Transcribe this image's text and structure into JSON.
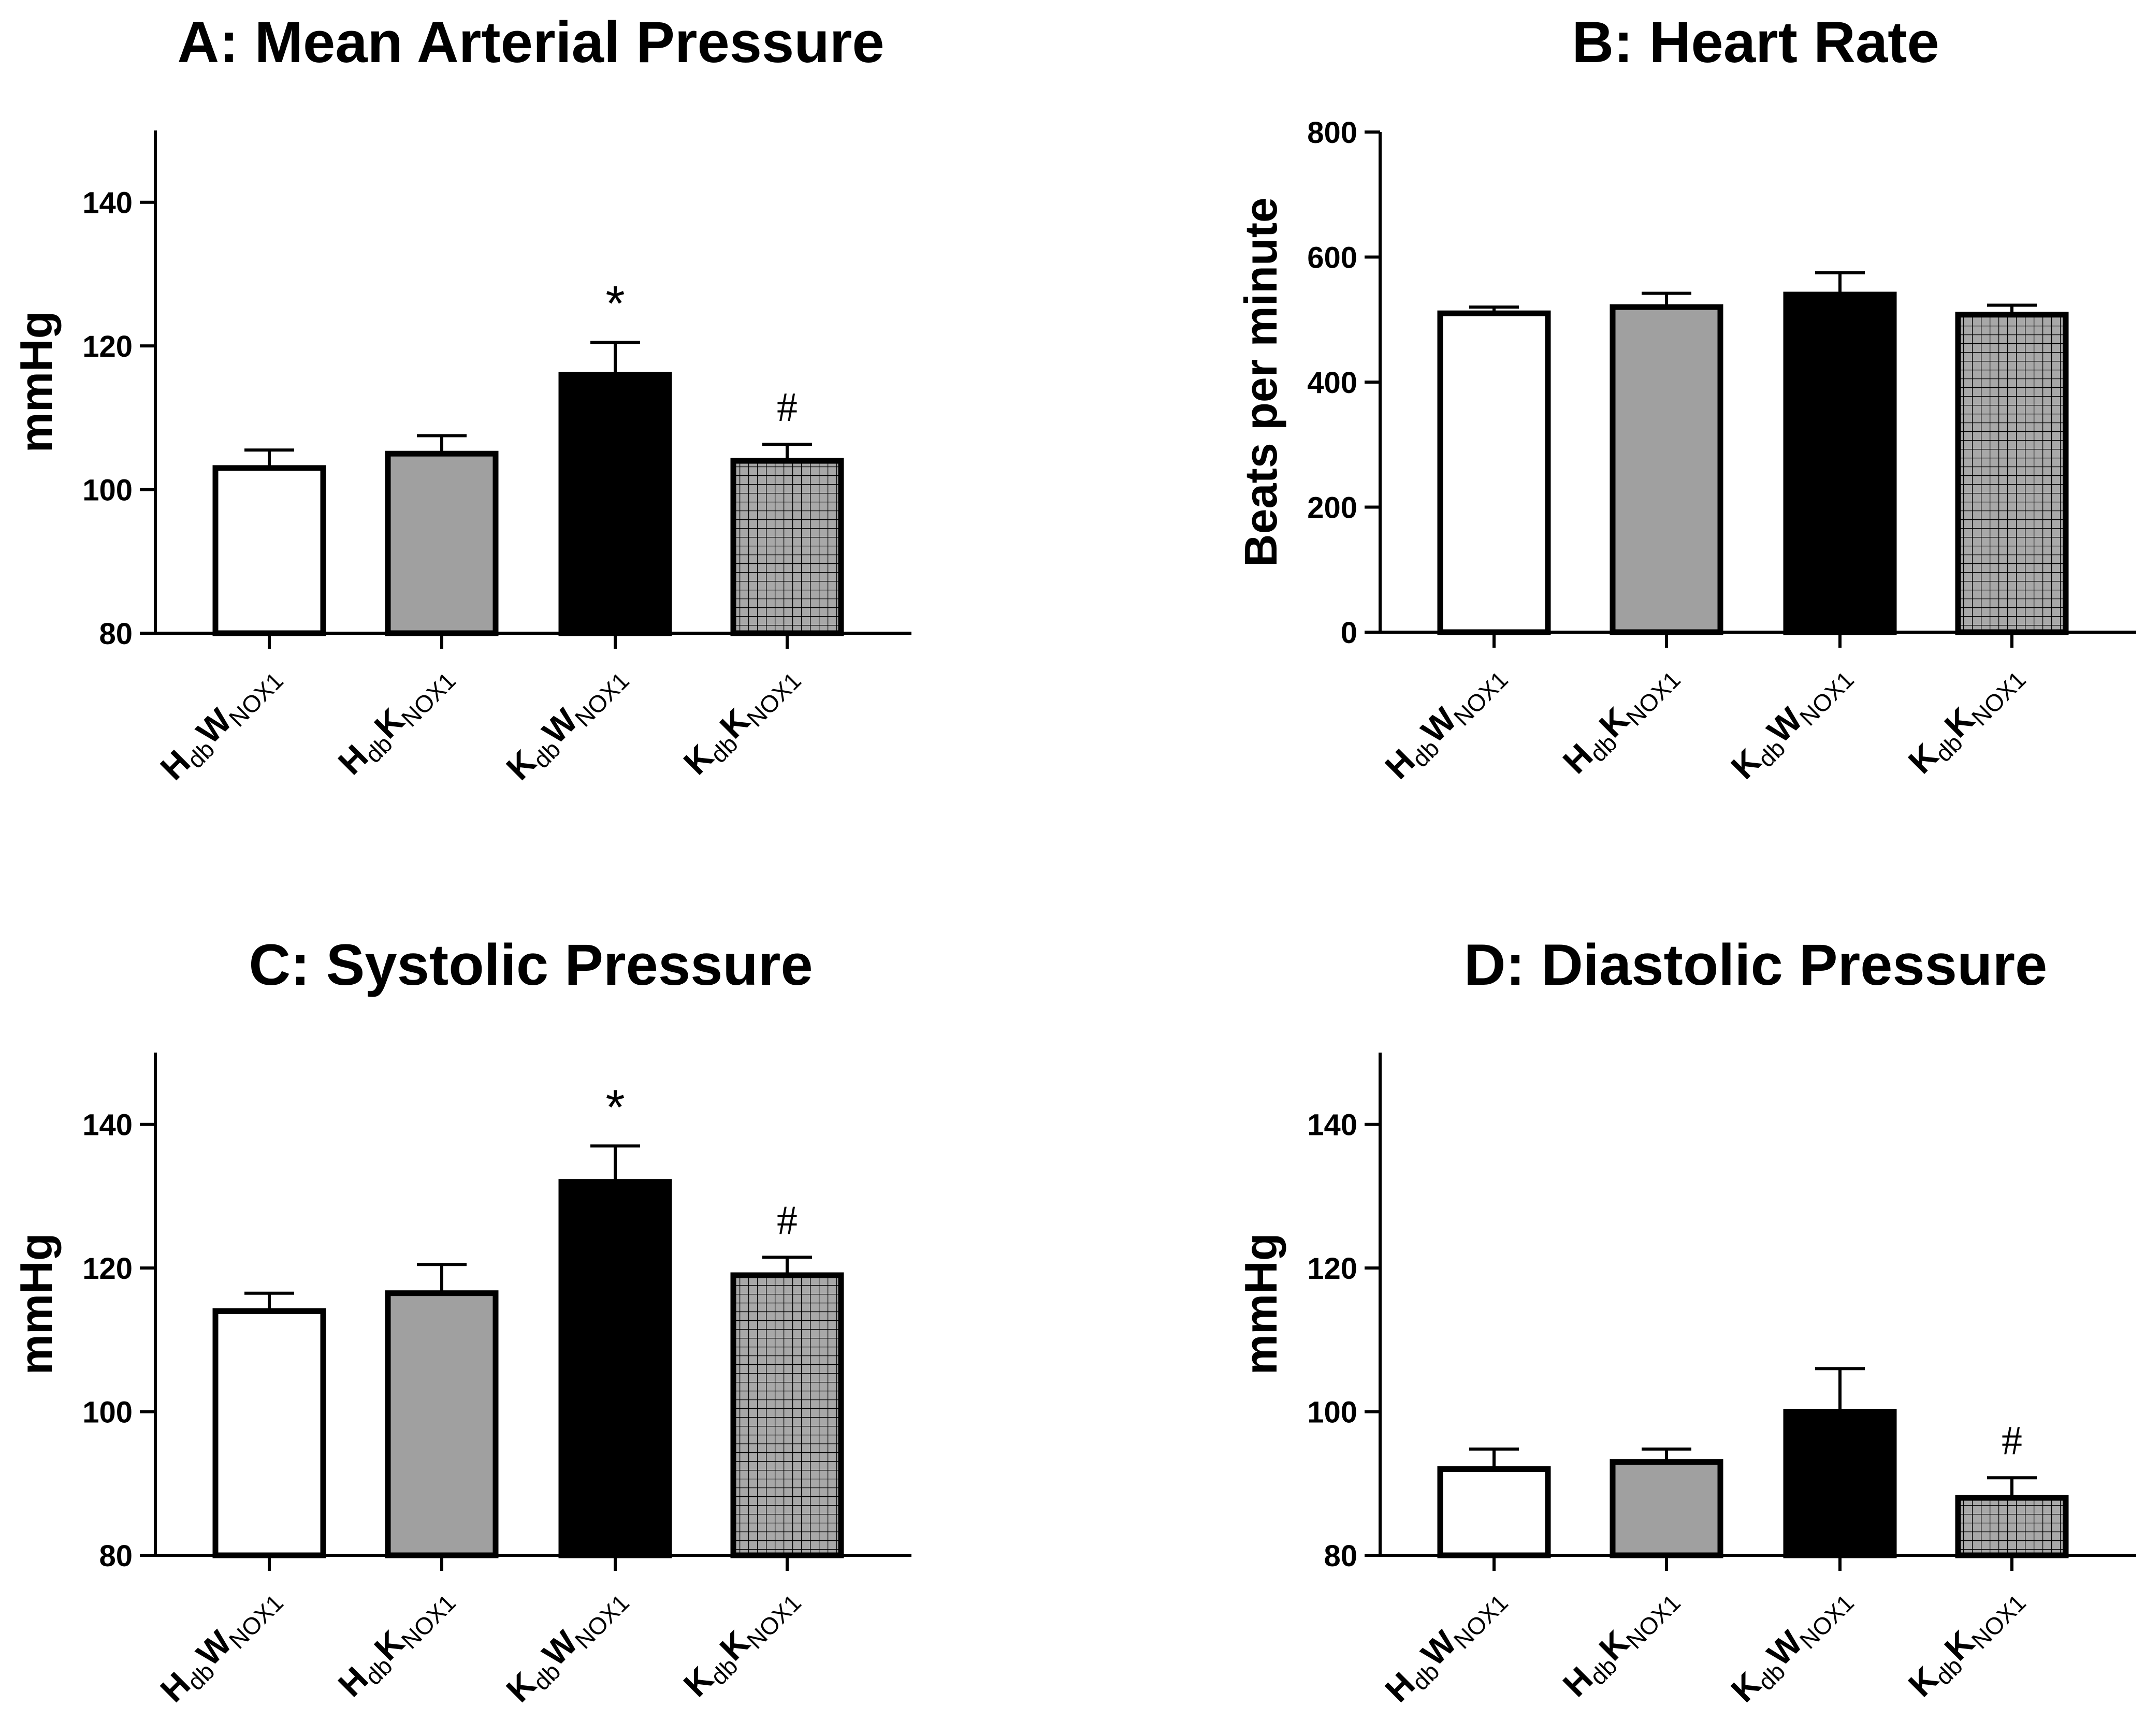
{
  "figure": {
    "categories": [
      {
        "main1": "H",
        "sub1": "db",
        "main2": "W",
        "sub2": "NOX1"
      },
      {
        "main1": "H",
        "sub1": "db",
        "main2": "K",
        "sub2": "NOX1"
      },
      {
        "main1": "K",
        "sub1": "db",
        "main2": "W",
        "sub2": "NOX1"
      },
      {
        "main1": "K",
        "sub1": "db",
        "main2": "K",
        "sub2": "NOX1"
      }
    ],
    "bar_styles": [
      {
        "fill": "#ffffff",
        "pattern": "none"
      },
      {
        "fill": "#a0a0a0",
        "pattern": "none"
      },
      {
        "fill": "#000000",
        "pattern": "none"
      },
      {
        "fill": "#a8a8a8",
        "pattern": "grid"
      }
    ]
  },
  "chart_data": [
    {
      "type": "bar",
      "title": "A: Mean Arterial Pressure",
      "ylabel": "mmHg",
      "ylim": [
        80,
        150
      ],
      "yticks": [
        80,
        100,
        120,
        140
      ],
      "values": [
        103,
        105,
        116,
        104
      ],
      "errors": [
        2.5,
        2.5,
        4.5,
        2.3
      ],
      "annotations": [
        "",
        "",
        "*",
        "#"
      ]
    },
    {
      "type": "bar",
      "title": "B: Heart Rate",
      "ylabel": "Beats per minute",
      "ylim": [
        0,
        800
      ],
      "yticks": [
        0,
        200,
        400,
        600,
        800
      ],
      "values": [
        510,
        520,
        540,
        508
      ],
      "errors": [
        10,
        22,
        35,
        15
      ],
      "annotations": [
        "",
        "",
        "",
        ""
      ]
    },
    {
      "type": "bar",
      "title": "C: Systolic Pressure",
      "ylabel": "mmHg",
      "ylim": [
        80,
        150
      ],
      "yticks": [
        80,
        100,
        120,
        140
      ],
      "values": [
        114,
        116.5,
        132,
        119
      ],
      "errors": [
        2.5,
        4,
        5,
        2.5
      ],
      "annotations": [
        "",
        "",
        "*",
        "#"
      ]
    },
    {
      "type": "bar",
      "title": "D: Diastolic Pressure",
      "ylabel": "mmHg",
      "ylim": [
        80,
        150
      ],
      "yticks": [
        80,
        100,
        120,
        140
      ],
      "values": [
        92,
        93,
        100,
        88
      ],
      "errors": [
        2.8,
        1.8,
        6,
        2.8
      ],
      "annotations": [
        "",
        "",
        "",
        "#"
      ]
    }
  ]
}
